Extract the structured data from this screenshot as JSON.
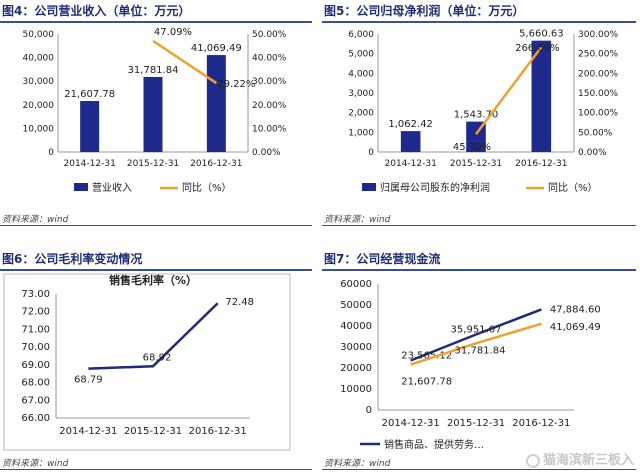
{
  "panels": [
    {
      "caption": "图4：公司营业收入（单位：万元）",
      "source": "资料来源：wind",
      "chart_data": {
        "type": "bar+line",
        "categories": [
          "2014-12-31",
          "2015-12-31",
          "2016-12-31"
        ],
        "bar_series": {
          "name": "营业收入",
          "values": [
            21607.78,
            31781.84,
            41069.49
          ],
          "labels": [
            "21,607.78",
            "31,781.84",
            "41,069.49"
          ],
          "color": "#1f2b8c"
        },
        "line_series": {
          "name": "同比（%）",
          "values": [
            null,
            47.09,
            29.22
          ],
          "labels": [
            "",
            "47.09%",
            "29.22%"
          ],
          "color": "#f0a030"
        },
        "y_left": {
          "min": 0,
          "max": 50000,
          "ticks": [
            "0",
            "10,000",
            "20,000",
            "30,000",
            "40,000",
            "50,000"
          ]
        },
        "y_right": {
          "min": 0,
          "max": 50,
          "ticks": [
            "0.00%",
            "10.00%",
            "20.00%",
            "30.00%",
            "40.00%",
            "50.00%"
          ]
        },
        "legend_position": "bottom"
      }
    },
    {
      "caption": "图5：公司归母净利润（单位：万元）",
      "source": "资料来源：wind",
      "chart_data": {
        "type": "bar+line",
        "categories": [
          "2014-12-31",
          "2015-12-31",
          "2016-12-31"
        ],
        "bar_series": {
          "name": "归属母公司股东的净利润",
          "values": [
            1062.42,
            1543.7,
            5660.63
          ],
          "labels": [
            "1,062.42",
            "1,543.70",
            "5,660.63"
          ],
          "color": "#1f2b8c"
        },
        "line_series": {
          "name": "同比（%）",
          "values": [
            null,
            45.3,
            266.69
          ],
          "labels": [
            "",
            "45.30%",
            "266.69%"
          ],
          "color": "#f0a030"
        },
        "y_left": {
          "min": 0,
          "max": 6000,
          "ticks": [
            "0",
            "1,000",
            "2,000",
            "3,000",
            "4,000",
            "5,000",
            "6,000"
          ]
        },
        "y_right": {
          "min": 0,
          "max": 300,
          "ticks": [
            "0.00%",
            "50.00%",
            "100.00%",
            "150.00%",
            "200.00%",
            "250.00%",
            "300.00%"
          ]
        },
        "legend_position": "bottom"
      }
    },
    {
      "caption": "图6：公司毛利率变动情况",
      "source": "资料来源：wind",
      "chart_data": {
        "type": "line",
        "title": "销售毛利率（%）",
        "categories": [
          "2014-12-31",
          "2015-12-31",
          "2016-12-31"
        ],
        "series": [
          {
            "name": "销售毛利率（%）",
            "values": [
              68.79,
              68.92,
              72.48
            ],
            "labels": [
              "68.79",
              "68.92",
              "72.48"
            ],
            "color": "#1f2b78"
          }
        ],
        "y": {
          "min": 66,
          "max": 73,
          "ticks": [
            "66.00",
            "67.00",
            "68.00",
            "69.00",
            "70.00",
            "71.00",
            "72.00",
            "73.00"
          ]
        }
      }
    },
    {
      "caption": "图7：公司经营现金流",
      "source": "资料来源：wind",
      "chart_data": {
        "type": "line",
        "categories": [
          "2014-12-31",
          "2015-12-31",
          "2016-12-31"
        ],
        "series": [
          {
            "name": "销售商品、提供劳务…",
            "values": [
              23565.12,
              35951.07,
              47884.6
            ],
            "labels": [
              "23,565.12",
              "35,951.07",
              "47,884.60"
            ],
            "color": "#1f2b78"
          },
          {
            "name": "",
            "values": [
              21607.78,
              31781.84,
              41069.49
            ],
            "labels": [
              "21,607.78",
              "31,781.84",
              "41,069.49"
            ],
            "color": "#f0a030"
          }
        ],
        "y": {
          "min": 0,
          "max": 60000,
          "ticks": [
            "0",
            "10000",
            "20000",
            "30000",
            "40000",
            "50000",
            "60000"
          ]
        },
        "legend_position": "bottom"
      }
    }
  ],
  "watermark": "猫海滨新三板入"
}
